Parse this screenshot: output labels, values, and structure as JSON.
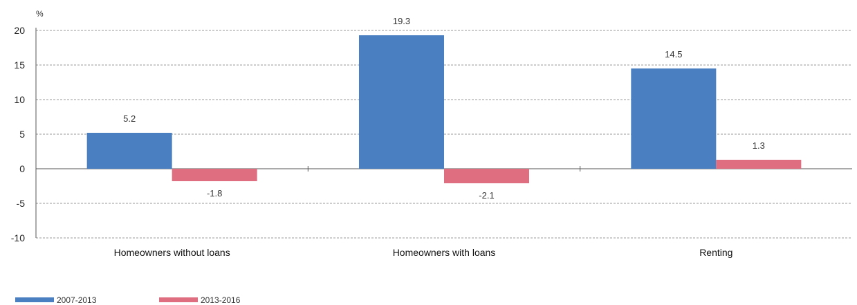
{
  "chart_data": {
    "type": "bar",
    "unit_label": "%",
    "categories": [
      "Homeowners without loans",
      "Homeowners with loans",
      "Renting"
    ],
    "series": [
      {
        "name": "2007-2013",
        "values": [
          5.2,
          19.3,
          14.5
        ],
        "labels": [
          "5.2",
          "19.3",
          "14.5"
        ],
        "color": "#4a7fc1"
      },
      {
        "name": "2013-2016",
        "values": [
          -1.8,
          -2.1,
          1.3
        ],
        "labels": [
          "-1.8",
          "-2.1",
          "1.3"
        ],
        "color": "#df6e80"
      }
    ],
    "ylim": [
      -10,
      20
    ],
    "yticks": [
      -10,
      -5,
      0,
      5,
      10,
      15,
      20
    ],
    "ytick_labels": [
      "-10",
      "-5",
      "0",
      "5",
      "10",
      "15",
      "20"
    ],
    "grid": true,
    "grid_style": "dashed",
    "legend_position": "bottom-left"
  }
}
